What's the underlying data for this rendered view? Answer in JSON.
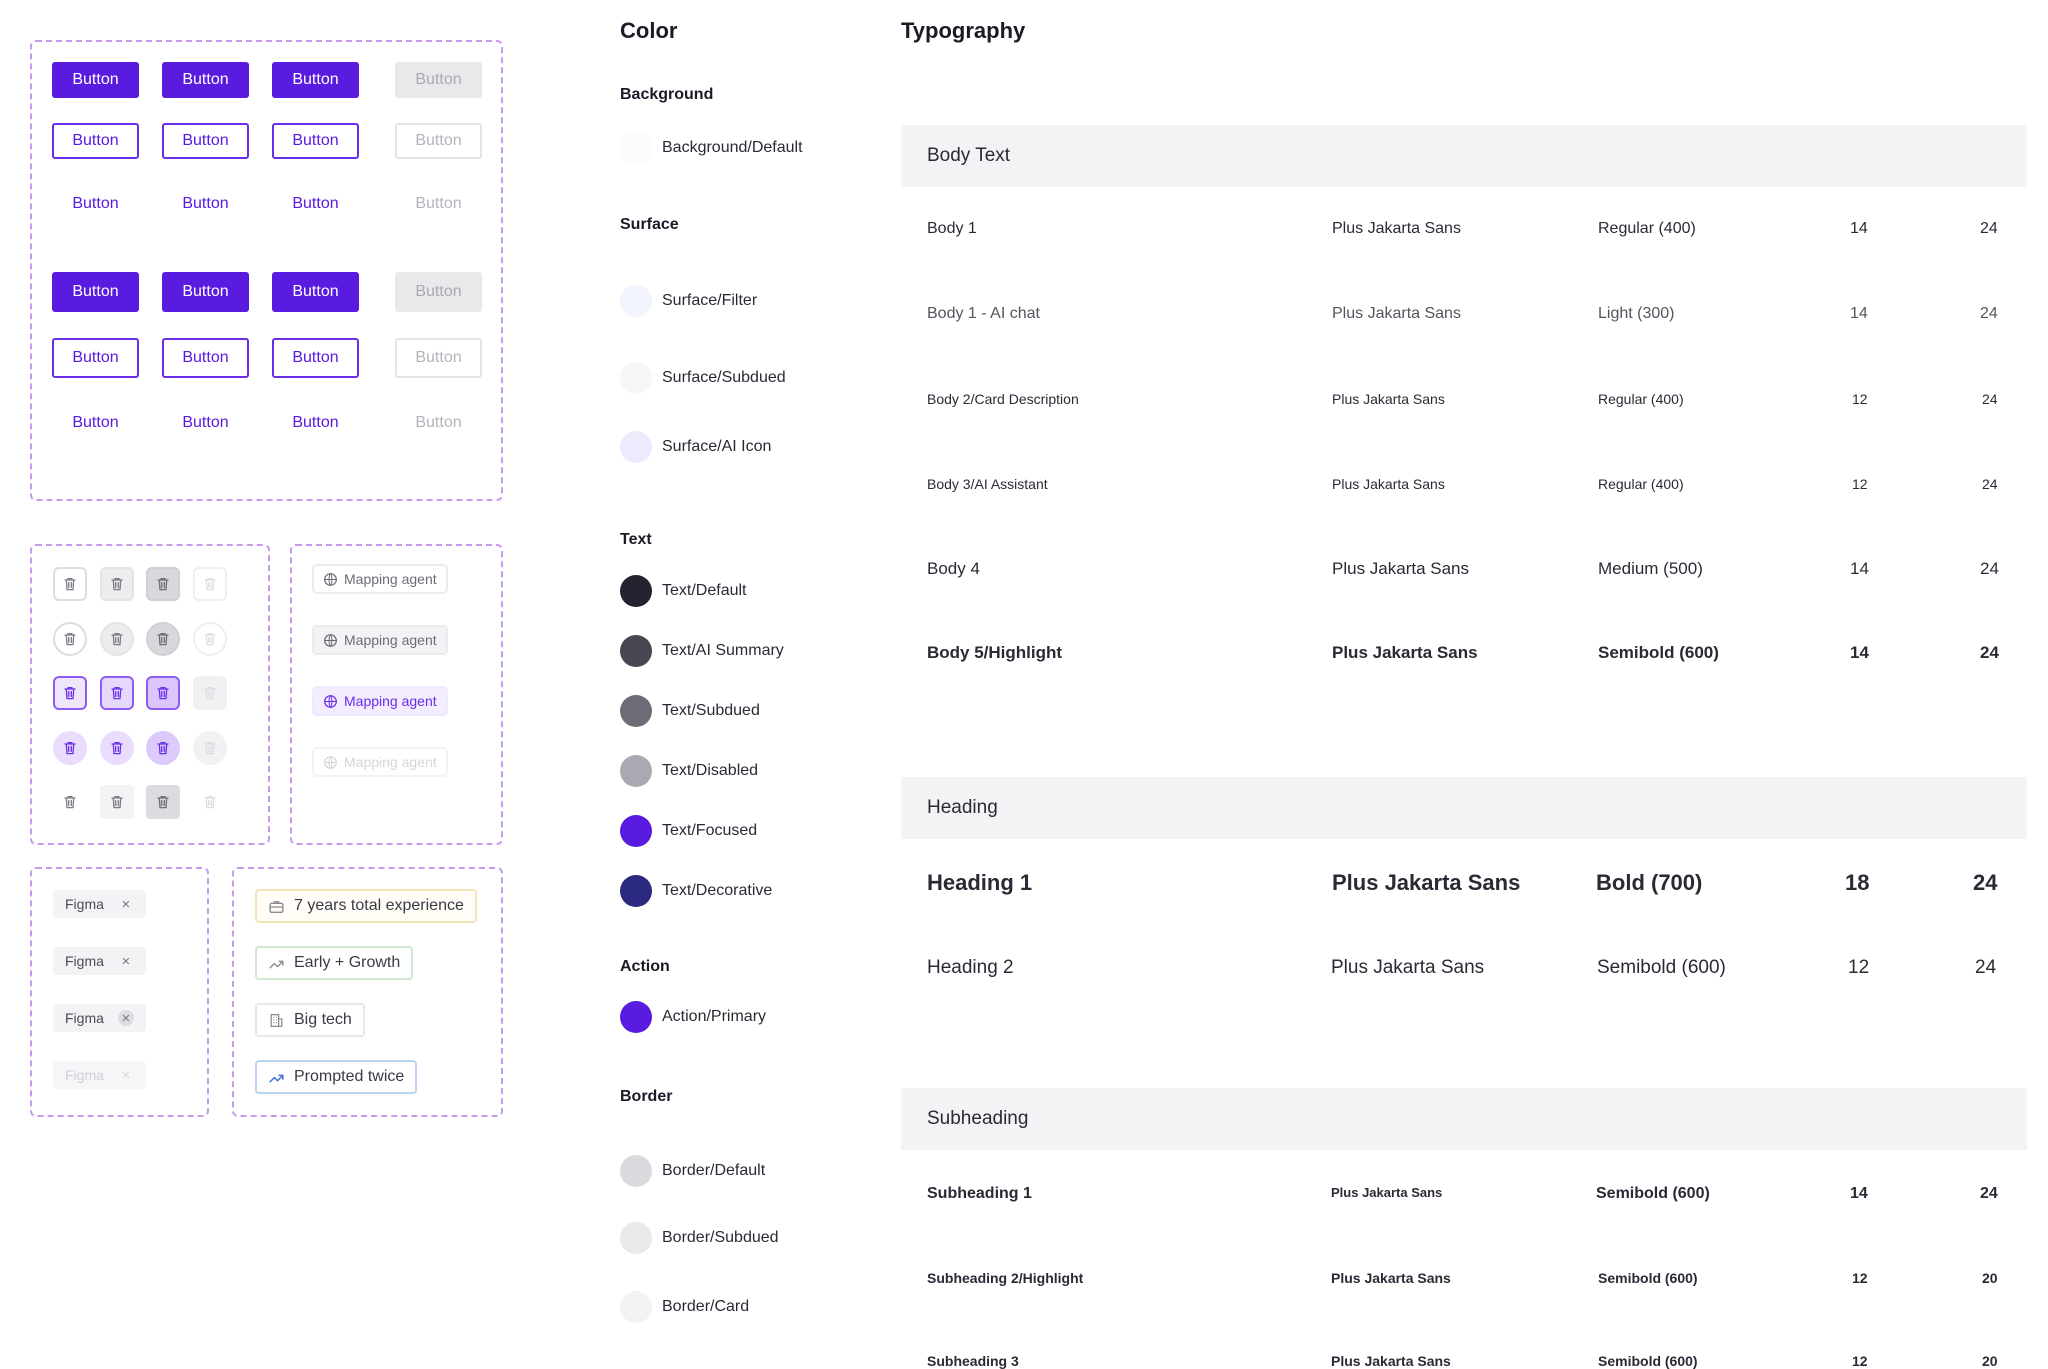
{
  "buttons": {
    "label": "Button",
    "rows": [
      [
        "Button",
        "Button",
        "Button",
        "Button"
      ],
      [
        "Button",
        "Button",
        "Button",
        "Button"
      ],
      [
        "Button",
        "Button",
        "Button",
        "Button"
      ],
      [
        "Button",
        "Button",
        "Button",
        "Button"
      ],
      [
        "Button",
        "Button",
        "Button",
        "Button"
      ],
      [
        "Button",
        "Button",
        "Button",
        "Button"
      ]
    ]
  },
  "icons": {
    "trash": "trash-icon",
    "globe": "globe-icon",
    "close": "close-icon"
  },
  "agents": [
    "Mapping agent",
    "Mapping agent",
    "Mapping agent",
    "Mapping agent"
  ],
  "tags": [
    "Figma",
    "Figma",
    "Figma",
    "Figma"
  ],
  "chips": [
    "7 years total experience",
    "Early + Growth",
    "Big tech",
    "Prompted twice"
  ],
  "color": {
    "title": "Color",
    "background": {
      "title": "Background",
      "items": [
        {
          "name": "Background/Default",
          "hex": "#fbfbfd"
        }
      ]
    },
    "surface": {
      "title": "Surface",
      "items": [
        {
          "name": "Surface/Filter",
          "hex": "#f2f5fe"
        },
        {
          "name": "Surface/Subdued",
          "hex": "#f7f7f9"
        },
        {
          "name": "Surface/AI Icon",
          "hex": "#eee9fd"
        }
      ]
    },
    "text": {
      "title": "Text",
      "items": [
        {
          "name": "Text/Default",
          "hex": "#23232f"
        },
        {
          "name": "Text/AI Summary",
          "hex": "#474752"
        },
        {
          "name": "Text/Subdued",
          "hex": "#6c6c76"
        },
        {
          "name": "Text/Disabled",
          "hex": "#a9a9b1"
        },
        {
          "name": "Text/Focused",
          "hex": "#5a1be0"
        },
        {
          "name": "Text/Decorative",
          "hex": "#2c2a80"
        }
      ]
    },
    "action": {
      "title": "Action",
      "items": [
        {
          "name": "Action/Primary",
          "hex": "#5a1be0"
        }
      ]
    },
    "border": {
      "title": "Border",
      "items": [
        {
          "name": "Border/Default",
          "hex": "#dadade"
        },
        {
          "name": "Border/Subdued",
          "hex": "#e9e9ec"
        },
        {
          "name": "Border/Card",
          "hex": "#f3f3f5"
        }
      ]
    }
  },
  "typography": {
    "title": "Typography",
    "body": {
      "title": "Body Text",
      "rows": [
        {
          "name": "Body 1",
          "font": "Plus Jakarta Sans",
          "weight": "Regular (400)",
          "size": "14",
          "line": "24"
        },
        {
          "name": "Body 1 - AI chat",
          "font": "Plus Jakarta Sans",
          "weight": "Light (300)",
          "size": "14",
          "line": "24"
        },
        {
          "name": "Body 2/Card Description",
          "font": "Plus Jakarta Sans",
          "weight": "Regular (400)",
          "size": "12",
          "line": "24"
        },
        {
          "name": "Body 3/AI Assistant",
          "font": "Plus Jakarta Sans",
          "weight": "Regular (400)",
          "size": "12",
          "line": "24"
        },
        {
          "name": "Body 4",
          "font": "Plus Jakarta Sans",
          "weight": "Medium (500)",
          "size": "14",
          "line": "24"
        },
        {
          "name": "Body 5/Highlight",
          "font": "Plus Jakarta Sans",
          "weight": "Semibold (600)",
          "size": "14",
          "line": "24"
        }
      ]
    },
    "heading": {
      "title": "Heading",
      "rows": [
        {
          "name": "Heading 1",
          "font": "Plus Jakarta Sans",
          "weight": "Bold (700)",
          "size": "18",
          "line": "24"
        },
        {
          "name": "Heading 2",
          "font": "Plus Jakarta Sans",
          "weight": "Semibold (600)",
          "size": "12",
          "line": "24"
        }
      ]
    },
    "subheading": {
      "title": "Subheading",
      "rows": [
        {
          "name": "Subheading 1",
          "font": "Plus Jakarta Sans",
          "weight": "Semibold (600)",
          "size": "14",
          "line": "24"
        },
        {
          "name": "Subheading 2/Highlight",
          "font": "Plus Jakarta Sans",
          "weight": "Semibold (600)",
          "size": "12",
          "line": "20"
        },
        {
          "name": "Subheading 3",
          "font": "Plus Jakarta Sans",
          "weight": "Semibold (600)",
          "size": "12",
          "line": "20"
        }
      ]
    }
  }
}
